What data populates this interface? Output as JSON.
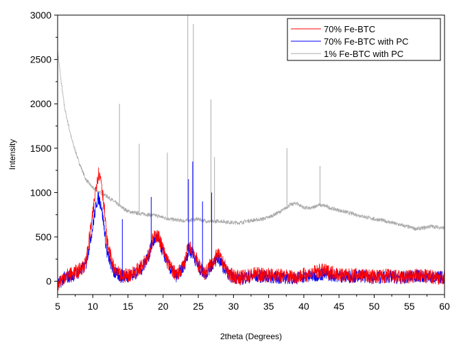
{
  "chart_data": {
    "type": "line",
    "title": "",
    "xlabel": "2theta (Degrees)",
    "ylabel": "Intensity",
    "xlim": [
      5,
      60
    ],
    "ylim": [
      -150,
      3000
    ],
    "x_ticks": [
      5,
      10,
      15,
      20,
      25,
      30,
      35,
      40,
      45,
      50,
      55,
      60
    ],
    "y_ticks": [
      0,
      500,
      1000,
      1500,
      2000,
      2500,
      3000
    ],
    "grid": false,
    "legend_position": "top-right",
    "series": [
      {
        "name": "70% Fe-BTC",
        "color": "#ff0000",
        "x": [
          5,
          6,
          7,
          8,
          9,
          10,
          10.5,
          10.8,
          11.2,
          11.6,
          12,
          13,
          14,
          15,
          16,
          17,
          18,
          18.5,
          19,
          19.5,
          20,
          21,
          22,
          23,
          23.6,
          24.2,
          25,
          26,
          27,
          27.8,
          28.5,
          29.5,
          31,
          33,
          35,
          37,
          39,
          41,
          42.5,
          44,
          46,
          48,
          50,
          52,
          54,
          56,
          58,
          60
        ],
        "y": [
          -30,
          60,
          80,
          120,
          200,
          750,
          1100,
          1220,
          1150,
          850,
          450,
          130,
          60,
          70,
          100,
          170,
          330,
          460,
          520,
          480,
          350,
          160,
          60,
          200,
          380,
          360,
          180,
          90,
          220,
          300,
          200,
          70,
          40,
          80,
          70,
          60,
          50,
          90,
          120,
          100,
          60,
          70,
          50,
          60,
          40,
          60,
          50,
          40
        ]
      },
      {
        "name": "70% Fe-BTC with PC",
        "color": "#0000ff",
        "x": [
          5,
          6,
          7,
          8,
          9,
          10,
          10.5,
          10.8,
          11.2,
          11.6,
          12,
          13,
          14,
          15,
          16,
          17,
          18,
          18.5,
          19,
          19.5,
          20,
          21,
          22,
          23,
          23.6,
          24.2,
          25,
          26,
          27,
          27.8,
          28.5,
          29.5,
          31,
          33,
          35,
          37,
          39,
          41,
          42.5,
          44,
          46,
          48,
          50,
          52,
          54,
          56,
          58,
          60
        ],
        "y": [
          -40,
          40,
          60,
          100,
          180,
          620,
          880,
          940,
          860,
          620,
          320,
          100,
          50,
          60,
          90,
          150,
          300,
          430,
          490,
          440,
          320,
          140,
          50,
          180,
          340,
          320,
          160,
          80,
          190,
          260,
          170,
          60,
          30,
          60,
          50,
          40,
          40,
          60,
          80,
          70,
          50,
          60,
          40,
          50,
          40,
          60,
          50,
          40
        ]
      },
      {
        "name": "1% Fe-BTC with PC",
        "color": "#aaaaaa",
        "x": [
          5,
          5.5,
          6,
          7,
          8,
          9,
          10,
          11,
          12,
          13,
          14,
          15,
          16,
          17,
          18,
          19,
          20,
          21,
          22,
          23,
          24,
          25,
          26,
          27,
          28,
          29,
          30,
          31,
          32,
          33,
          34,
          35,
          36,
          37,
          38,
          39,
          40,
          41,
          42,
          43,
          44,
          45,
          46,
          47,
          48,
          49,
          50,
          51,
          52,
          53,
          54,
          55,
          56,
          57,
          58,
          59,
          60
        ],
        "y": [
          2600,
          2250,
          1950,
          1600,
          1350,
          1150,
          1050,
          1000,
          960,
          900,
          840,
          790,
          770,
          760,
          750,
          740,
          720,
          700,
          690,
          680,
          690,
          700,
          680,
          670,
          680,
          670,
          660,
          660,
          680,
          690,
          700,
          720,
          760,
          800,
          860,
          880,
          830,
          820,
          860,
          850,
          820,
          800,
          780,
          760,
          740,
          720,
          700,
          690,
          670,
          650,
          630,
          610,
          590,
          600,
          620,
          610,
          600
        ]
      }
    ],
    "spikes": [
      {
        "series": "1% Fe-BTC with PC",
        "x": 13.8,
        "y": 2000
      },
      {
        "series": "1% Fe-BTC with PC",
        "x": 16.6,
        "y": 1550
      },
      {
        "series": "1% Fe-BTC with PC",
        "x": 20.6,
        "y": 1450
      },
      {
        "series": "1% Fe-BTC with PC",
        "x": 23.5,
        "y": 3000
      },
      {
        "series": "1% Fe-BTC with PC",
        "x": 24.3,
        "y": 2900
      },
      {
        "series": "1% Fe-BTC with PC",
        "x": 26.8,
        "y": 2050
      },
      {
        "series": "1% Fe-BTC with PC",
        "x": 27.3,
        "y": 1400
      },
      {
        "series": "1% Fe-BTC with PC",
        "x": 37.6,
        "y": 1500
      },
      {
        "series": "1% Fe-BTC with PC",
        "x": 42.3,
        "y": 1300
      },
      {
        "series": "70% Fe-BTC with PC",
        "x": 14.2,
        "y": 700
      },
      {
        "series": "70% Fe-BTC with PC",
        "x": 18.3,
        "y": 950
      },
      {
        "series": "70% Fe-BTC with PC",
        "x": 23.6,
        "y": 1150
      },
      {
        "series": "70% Fe-BTC with PC",
        "x": 24.2,
        "y": 1350
      },
      {
        "series": "70% Fe-BTC with PC",
        "x": 25.6,
        "y": 900
      },
      {
        "series": "70% Fe-BTC with PC",
        "x": 26.9,
        "y": 1000
      }
    ]
  }
}
